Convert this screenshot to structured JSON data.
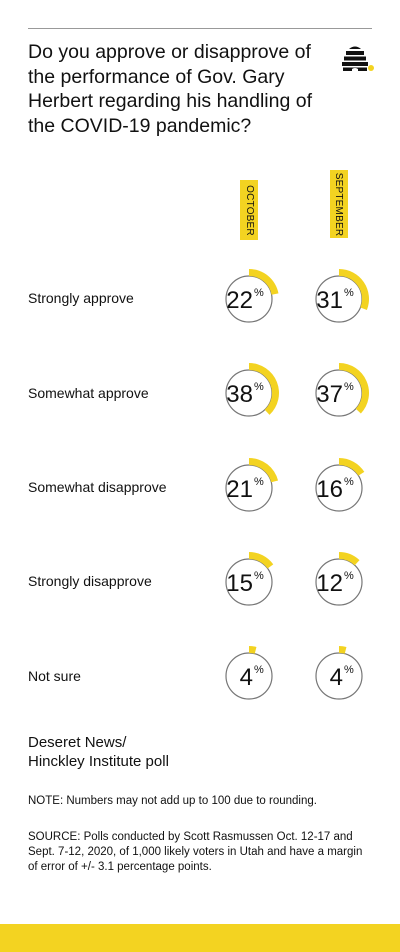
{
  "title": "Do you approve or disapprove of the performance of Gov. Gary Herbert regarding his handling of the COVID-19 pandemic?",
  "colors": {
    "accent": "#f3d321",
    "ring": "#777777",
    "text": "#111111"
  },
  "logo_icon": "beehive-icon",
  "chart_data": {
    "type": "donut",
    "title": "Do you approve or disapprove of the performance of Gov. Gary Herbert regarding his handling of the COVID-19 pandemic?",
    "unit": "%",
    "categories": [
      "Strongly approve",
      "Somewhat approve",
      "Somewhat disapprove",
      "Strongly disapprove",
      "Not sure"
    ],
    "series": [
      {
        "name": "OCTOBER",
        "values": [
          22,
          38,
          21,
          15,
          4
        ]
      },
      {
        "name": "SEPTEMBER",
        "values": [
          31,
          37,
          16,
          12,
          4
        ]
      }
    ]
  },
  "source": {
    "title_lines": [
      "Deseret News/",
      "Hinckley Institute poll"
    ],
    "note": "NOTE: Numbers may not add up to 100 due to rounding.",
    "text": "SOURCE: Polls conducted by Scott Rasmussen Oct. 12-17 and Sept. 7-12, 2020, of 1,000 likely voters in Utah and have a margin of error of +/- 3.1 percentage points."
  }
}
